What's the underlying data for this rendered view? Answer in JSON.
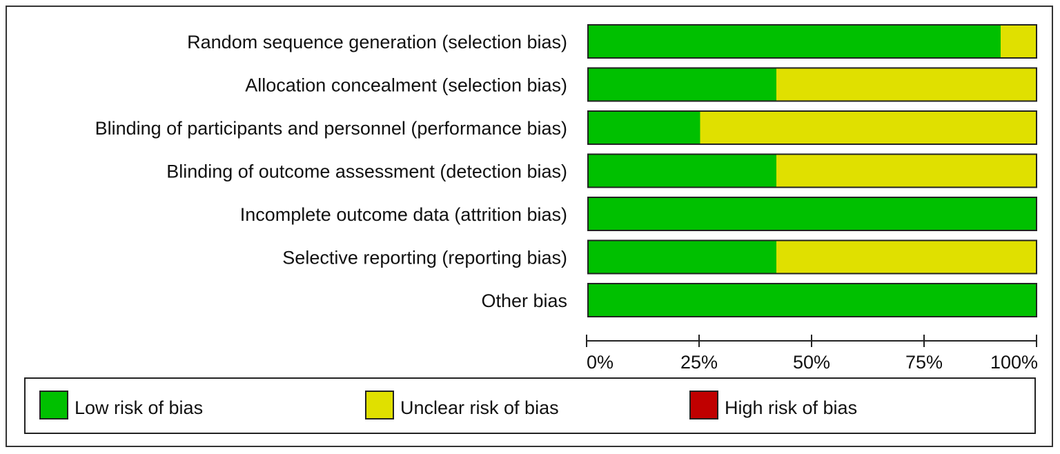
{
  "chart_data": {
    "type": "bar",
    "orientation": "horizontal",
    "stacked": true,
    "normalized": true,
    "categories": [
      "Random sequence generation (selection bias)",
      "Allocation concealment (selection bias)",
      "Blinding of participants and personnel (performance bias)",
      "Blinding of outcome assessment (detection bias)",
      "Incomplete outcome data (attrition bias)",
      "Selective reporting (reporting bias)",
      "Other bias"
    ],
    "series": [
      {
        "name": "Low risk of bias",
        "color": "#00c000",
        "values": [
          92,
          42,
          25,
          42,
          100,
          42,
          100
        ]
      },
      {
        "name": "Unclear risk of bias",
        "color": "#e0e000",
        "values": [
          8,
          58,
          75,
          58,
          0,
          58,
          0
        ]
      },
      {
        "name": "High risk of bias",
        "color": "#c00000",
        "values": [
          0,
          0,
          0,
          0,
          0,
          0,
          0
        ]
      }
    ],
    "xlim": [
      0,
      100
    ],
    "xticks": [
      "0%",
      "25%",
      "50%",
      "75%",
      "100%"
    ],
    "legend_position": "bottom",
    "grid": false
  }
}
